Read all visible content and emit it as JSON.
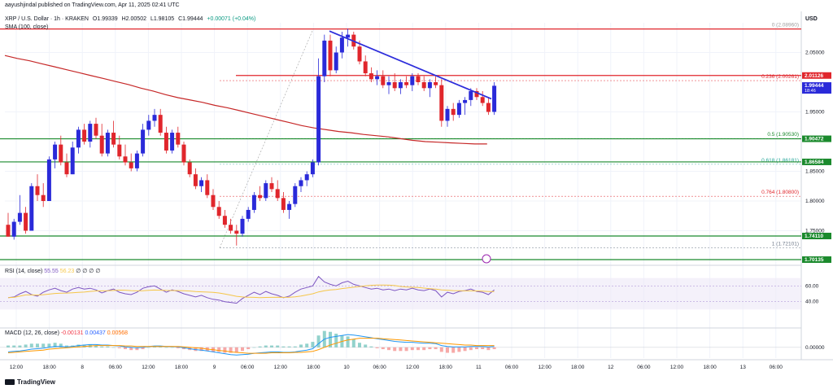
{
  "header": {
    "line1": "aayushjindal published on TradingView.com, Apr 11, 2025 02:41 UTC",
    "symbol": "XRP / U.S. Dollar · 1h · KRAKEN",
    "open": "O1.99339",
    "high": "H2.00502",
    "low": "L1.98105",
    "close": "C1.99444",
    "change": "+0.00071 (+0.04%)",
    "sma": "SMA (100, close)"
  },
  "currency": "USD",
  "rsi": {
    "label": "RSI (14, close)",
    "v1": "55.55",
    "v2": "56.23",
    "extra": "∅ ∅ ∅ ∅"
  },
  "macd": {
    "label": "MACD (12, 26, close)",
    "v1": "-0.00131",
    "v2": "0.00437",
    "v3": "0.00568"
  },
  "brand": "TradingView",
  "colors": {
    "up": "#2a2ad9",
    "down": "#e0262c",
    "sma": "#c62828",
    "trend": "#2d2ddb",
    "hline": "#1b8a2d",
    "rsi": "#7e57c2",
    "rsi_ma": "#f5c648",
    "macd": "#2196f3",
    "signal": "#ff9800"
  },
  "chart_data": {
    "type": "candlestick",
    "x_tick_labels": [
      "12:00",
      "18:00",
      "8",
      "06:00",
      "12:00",
      "18:00",
      "9",
      "06:00",
      "12:00",
      "18:00",
      "10",
      "06:00",
      "12:00",
      "18:00",
      "11",
      "06:00",
      "12:00",
      "18:00",
      "12",
      "06:00",
      "12:00",
      "18:00",
      "13",
      "06:00"
    ],
    "y_tick_labels": [
      "2.05000",
      "1.95000",
      "1.85000",
      "1.80000",
      "1.75000"
    ],
    "ylim": [
      1.7,
      2.1
    ],
    "candles": [
      [
        1.76,
        1.78,
        1.74,
        1.74
      ],
      [
        1.74,
        1.77,
        1.735,
        1.765
      ],
      [
        1.765,
        1.81,
        1.76,
        1.78
      ],
      [
        1.78,
        1.79,
        1.745,
        1.75
      ],
      [
        1.75,
        1.83,
        1.75,
        1.825
      ],
      [
        1.825,
        1.845,
        1.8,
        1.81
      ],
      [
        1.81,
        1.83,
        1.79,
        1.8
      ],
      [
        1.8,
        1.875,
        1.8,
        1.87
      ],
      [
        1.87,
        1.9,
        1.855,
        1.895
      ],
      [
        1.895,
        1.91,
        1.86,
        1.865
      ],
      [
        1.865,
        1.88,
        1.84,
        1.845
      ],
      [
        1.845,
        1.9,
        1.845,
        1.89
      ],
      [
        1.89,
        1.925,
        1.88,
        1.92
      ],
      [
        1.92,
        1.93,
        1.895,
        1.9
      ],
      [
        1.9,
        1.935,
        1.89,
        1.93
      ],
      [
        1.93,
        1.94,
        1.905,
        1.91
      ],
      [
        1.91,
        1.93,
        1.875,
        1.88
      ],
      [
        1.88,
        1.92,
        1.875,
        1.915
      ],
      [
        1.915,
        1.935,
        1.89,
        1.895
      ],
      [
        1.895,
        1.91,
        1.87,
        1.875
      ],
      [
        1.875,
        1.895,
        1.86,
        1.865
      ],
      [
        1.865,
        1.88,
        1.85,
        1.855
      ],
      [
        1.855,
        1.885,
        1.85,
        1.88
      ],
      [
        1.88,
        1.93,
        1.875,
        1.92
      ],
      [
        1.92,
        1.945,
        1.91,
        1.935
      ],
      [
        1.935,
        1.955,
        1.925,
        1.945
      ],
      [
        1.945,
        1.955,
        1.91,
        1.915
      ],
      [
        1.915,
        1.925,
        1.88,
        1.885
      ],
      [
        1.885,
        1.92,
        1.88,
        1.915
      ],
      [
        1.915,
        1.925,
        1.89,
        1.895
      ],
      [
        1.895,
        1.9,
        1.86,
        1.865
      ],
      [
        1.865,
        1.87,
        1.84,
        1.845
      ],
      [
        1.845,
        1.855,
        1.82,
        1.825
      ],
      [
        1.825,
        1.84,
        1.815,
        1.835
      ],
      [
        1.835,
        1.845,
        1.805,
        1.81
      ],
      [
        1.81,
        1.82,
        1.785,
        1.79
      ],
      [
        1.79,
        1.8,
        1.77,
        1.775
      ],
      [
        1.775,
        1.785,
        1.755,
        1.76
      ],
      [
        1.76,
        1.77,
        1.745,
        1.75
      ],
      [
        1.75,
        1.76,
        1.725,
        1.745
      ],
      [
        1.745,
        1.775,
        1.74,
        1.77
      ],
      [
        1.77,
        1.79,
        1.765,
        1.785
      ],
      [
        1.785,
        1.815,
        1.78,
        1.81
      ],
      [
        1.81,
        1.825,
        1.8,
        1.805
      ],
      [
        1.805,
        1.835,
        1.8,
        1.83
      ],
      [
        1.83,
        1.84,
        1.815,
        1.82
      ],
      [
        1.82,
        1.835,
        1.8,
        1.805
      ],
      [
        1.805,
        1.815,
        1.78,
        1.785
      ],
      [
        1.785,
        1.8,
        1.77,
        1.795
      ],
      [
        1.795,
        1.83,
        1.79,
        1.825
      ],
      [
        1.825,
        1.84,
        1.815,
        1.835
      ],
      [
        1.835,
        1.85,
        1.825,
        1.845
      ],
      [
        1.845,
        1.87,
        1.84,
        1.865
      ],
      [
        1.865,
        2.04,
        1.86,
        2.01
      ],
      [
        2.01,
        2.08,
        2.0,
        2.07
      ],
      [
        2.07,
        2.08,
        2.01,
        2.02
      ],
      [
        2.02,
        2.06,
        2.015,
        2.05
      ],
      [
        2.05,
        2.085,
        2.04,
        2.075
      ],
      [
        2.075,
        2.09,
        2.06,
        2.08
      ],
      [
        2.08,
        2.085,
        2.055,
        2.06
      ],
      [
        2.06,
        2.07,
        2.03,
        2.035
      ],
      [
        2.035,
        2.045,
        2.01,
        2.015
      ],
      [
        2.015,
        2.025,
        2.0,
        2.005
      ],
      [
        2.005,
        2.02,
        1.995,
        2.01
      ],
      [
        2.01,
        2.02,
        1.99,
        1.995
      ],
      [
        1.995,
        2.01,
        1.98,
        2.0
      ],
      [
        2.0,
        2.015,
        1.985,
        1.99
      ],
      [
        1.99,
        2.005,
        1.98,
        2.0
      ],
      [
        2.0,
        2.01,
        1.99,
        1.995
      ],
      [
        1.995,
        2.015,
        1.985,
        2.01
      ],
      [
        2.01,
        2.015,
        1.995,
        2.0
      ],
      [
        2.0,
        2.01,
        1.985,
        1.99
      ],
      [
        1.99,
        2.005,
        1.975,
        2.0
      ],
      [
        2.0,
        2.01,
        1.99,
        1.995
      ],
      [
        1.995,
        2.005,
        1.925,
        1.935
      ],
      [
        1.935,
        1.96,
        1.925,
        1.955
      ],
      [
        1.955,
        1.965,
        1.935,
        1.945
      ],
      [
        1.945,
        1.97,
        1.94,
        1.965
      ],
      [
        1.965,
        1.975,
        1.945,
        1.97
      ],
      [
        1.97,
        1.99,
        1.96,
        1.985
      ],
      [
        1.985,
        1.99,
        1.97,
        1.975
      ],
      [
        1.975,
        1.985,
        1.96,
        1.965
      ],
      [
        1.965,
        1.975,
        1.945,
        1.95
      ],
      [
        1.95,
        2.0,
        1.945,
        1.994
      ]
    ],
    "sma": [
      2.045,
      2.04,
      2.036,
      2.031,
      2.026,
      2.021,
      2.016,
      2.011,
      2.006,
      2.001,
      1.996,
      1.99,
      1.985,
      1.979,
      1.974,
      1.97,
      1.966,
      1.961,
      1.957,
      1.952,
      1.947,
      1.942,
      1.937,
      1.932,
      1.927,
      1.923,
      1.92,
      1.917,
      1.915,
      1.912,
      1.91,
      1.908,
      1.905,
      1.902,
      1.9,
      1.899,
      1.898,
      1.897,
      1.896,
      1.896
    ],
    "fib_levels": [
      {
        "label": "0 (2.08960)",
        "value": 2.0896
      },
      {
        "label": "0.236 (2.00261)",
        "value": 2.00261
      },
      {
        "label": "0.5 (1.90530)",
        "value": 1.9053
      },
      {
        "label": "0.618 (1.86181)",
        "value": 1.86181
      },
      {
        "label": "0.764 (1.80800)",
        "value": 1.808
      },
      {
        "label": "1 (1.72101)",
        "value": 1.72101
      }
    ],
    "price_labels": [
      {
        "label": "2.01126",
        "value": 2.01126,
        "color": "#e0262c"
      },
      {
        "label": "1.99444",
        "sub": "18:46",
        "value": 1.99444,
        "color": "#2a2ad9"
      },
      {
        "label": "1.90472",
        "value": 1.90472,
        "color": "#1b8a2d"
      },
      {
        "label": "1.86584",
        "value": 1.86584,
        "color": "#1b8a2d"
      },
      {
        "label": "1.74110",
        "value": 1.7411,
        "color": "#1b8a2d"
      },
      {
        "label": "1.70135",
        "value": 1.70135,
        "color": "#1b8a2d"
      }
    ],
    "rsi": {
      "levels": [
        60.0,
        40.0
      ],
      "level_labels": [
        "60.00",
        "40.00"
      ],
      "values": [
        45,
        46,
        50,
        53,
        49,
        47,
        52,
        55,
        57,
        54,
        52,
        56,
        58,
        56,
        57,
        55,
        51,
        54,
        56,
        52,
        50,
        49,
        52,
        57,
        59,
        60,
        56,
        52,
        55,
        53,
        50,
        48,
        46,
        48,
        45,
        43,
        42,
        40,
        39,
        38,
        44,
        48,
        52,
        49,
        53,
        50,
        48,
        45,
        47,
        52,
        56,
        58,
        60,
        72,
        65,
        62,
        60,
        64,
        66,
        62,
        60,
        58,
        56,
        57,
        55,
        56,
        54,
        56,
        55,
        57,
        55,
        54,
        56,
        54,
        46,
        52,
        50,
        53,
        54,
        56,
        53,
        52,
        49,
        55
      ]
    },
    "macd": {
      "level_label": "0.00000",
      "macd": [
        -0.01,
        -0.009,
        -0.008,
        -0.006,
        -0.004,
        -0.003,
        -0.002,
        0.0,
        0.002,
        0.002,
        0.001,
        0.002,
        0.004,
        0.005,
        0.006,
        0.006,
        0.005,
        0.005,
        0.004,
        0.003,
        0.001,
        0.0,
        -0.001,
        0.0,
        0.002,
        0.003,
        0.003,
        0.002,
        0.002,
        0.001,
        -0.001,
        -0.003,
        -0.005,
        -0.006,
        -0.008,
        -0.01,
        -0.012,
        -0.014,
        -0.016,
        -0.017,
        -0.016,
        -0.015,
        -0.013,
        -0.012,
        -0.011,
        -0.01,
        -0.01,
        -0.011,
        -0.011,
        -0.01,
        -0.008,
        -0.006,
        -0.003,
        0.008,
        0.018,
        0.022,
        0.024,
        0.026,
        0.028,
        0.027,
        0.025,
        0.023,
        0.021,
        0.019,
        0.017,
        0.015,
        0.013,
        0.012,
        0.011,
        0.011,
        0.01,
        0.009,
        0.009,
        0.008,
        0.004,
        0.002,
        0.001,
        0.001,
        0.001,
        0.002,
        0.002,
        0.002,
        0.001,
        0.002
      ],
      "signal": [
        -0.012,
        -0.011,
        -0.01,
        -0.009,
        -0.008,
        -0.007,
        -0.006,
        -0.004,
        -0.003,
        -0.002,
        -0.001,
        0.0,
        0.001,
        0.002,
        0.003,
        0.004,
        0.004,
        0.004,
        0.004,
        0.004,
        0.003,
        0.003,
        0.002,
        0.002,
        0.002,
        0.002,
        0.002,
        0.002,
        0.002,
        0.002,
        0.001,
        0.0,
        -0.001,
        -0.002,
        -0.004,
        -0.005,
        -0.007,
        -0.008,
        -0.01,
        -0.011,
        -0.012,
        -0.013,
        -0.013,
        -0.013,
        -0.013,
        -0.012,
        -0.012,
        -0.012,
        -0.012,
        -0.011,
        -0.011,
        -0.01,
        -0.009,
        -0.005,
        0.0,
        0.005,
        0.009,
        0.013,
        0.016,
        0.018,
        0.02,
        0.02,
        0.02,
        0.02,
        0.019,
        0.018,
        0.017,
        0.016,
        0.015,
        0.014,
        0.013,
        0.012,
        0.011,
        0.01,
        0.009,
        0.008,
        0.007,
        0.006,
        0.005,
        0.005,
        0.004,
        0.004,
        0.004,
        0.004
      ]
    }
  }
}
